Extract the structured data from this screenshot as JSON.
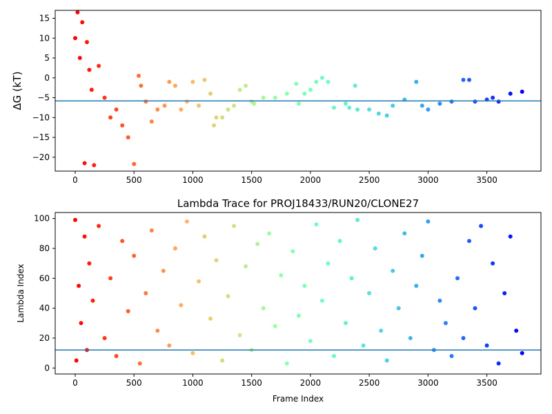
{
  "figure": {
    "background": "#ffffff"
  },
  "chart_data": [
    {
      "type": "scatter",
      "title": "",
      "xlabel": "",
      "ylabel": "ΔG (kT)",
      "xlim": [
        -170,
        3960
      ],
      "ylim": [
        -23.5,
        17
      ],
      "xticks": [
        "0",
        "500",
        "1000",
        "1500",
        "2000",
        "2500",
        "3000",
        "3500"
      ],
      "yticks": [
        "15",
        "10",
        "5",
        "0",
        "−5",
        "−10",
        "−15",
        "−20"
      ],
      "colormap": "rainbow (red at frame 0 to violet at frame 3800)",
      "hline": {
        "y": -5.8,
        "color": "#1f77b4"
      },
      "series": [
        {
          "x": [
            0,
            20,
            40,
            60,
            80,
            100,
            120,
            140,
            160,
            200,
            250,
            300,
            350,
            400,
            450,
            500,
            540,
            560,
            600,
            650,
            700,
            760,
            800,
            850,
            900,
            950,
            1000,
            1050,
            1100,
            1150,
            1180,
            1200,
            1250,
            1300,
            1350,
            1400,
            1450,
            1500,
            1520,
            1600,
            1700,
            1800,
            1880,
            1900,
            1950,
            2000,
            2050,
            2100,
            2150,
            2200,
            2300,
            2330,
            2380,
            2400,
            2500,
            2580,
            2650,
            2700,
            2800,
            2900,
            2950,
            3000,
            3100,
            3200,
            3300,
            3350,
            3400,
            3500,
            3550,
            3600,
            3700,
            3800
          ],
          "y": [
            10,
            16.5,
            5,
            14,
            -21.5,
            9,
            2,
            -3,
            -22,
            3,
            -5,
            -10,
            -8,
            -12,
            -15,
            -21.7,
            0.5,
            -2,
            -6,
            -11,
            -8,
            -7,
            -1,
            -2,
            -8,
            -6,
            -1,
            -7,
            -0.5,
            -4,
            -12,
            -10,
            -10,
            -8,
            -7,
            -3,
            -2,
            -6,
            -6.5,
            -5,
            -5,
            -4,
            -1.5,
            -6.5,
            -4,
            -3,
            -1,
            0,
            -1,
            -7.5,
            -6.5,
            -7.5,
            -2,
            -8,
            -8,
            -9,
            -9.5,
            -7,
            -5.5,
            -1,
            -7,
            -8,
            -6.5,
            -6,
            -0.5,
            -0.5,
            -6,
            -5.5,
            -5,
            -6,
            -4,
            -3.5
          ]
        }
      ]
    },
    {
      "type": "scatter",
      "title": "Lambda Trace for PROJ18433/RUN20/CLONE27",
      "xlabel": "Frame Index",
      "ylabel": "Lambda Index",
      "xlim": [
        -170,
        3960
      ],
      "ylim": [
        -4,
        104
      ],
      "xticks": [
        "0",
        "500",
        "1000",
        "1500",
        "2000",
        "2500",
        "3000",
        "3500"
      ],
      "yticks": [
        "0",
        "20",
        "40",
        "60",
        "80",
        "100"
      ],
      "colormap": "rainbow (red at frame 0 to violet at frame 3800)",
      "hline": {
        "y": 12,
        "color": "#1f77b4"
      },
      "series": [
        {
          "x": [
            0,
            10,
            30,
            50,
            80,
            100,
            120,
            150,
            200,
            250,
            300,
            350,
            400,
            450,
            500,
            550,
            600,
            650,
            700,
            750,
            800,
            850,
            900,
            950,
            1000,
            1050,
            1100,
            1150,
            1200,
            1250,
            1300,
            1350,
            1400,
            1450,
            1500,
            1550,
            1600,
            1650,
            1700,
            1750,
            1800,
            1850,
            1900,
            1950,
            2000,
            2050,
            2100,
            2150,
            2200,
            2250,
            2300,
            2350,
            2400,
            2450,
            2500,
            2550,
            2600,
            2650,
            2700,
            2750,
            2800,
            2850,
            2900,
            2950,
            3000,
            3050,
            3100,
            3150,
            3200,
            3250,
            3300,
            3350,
            3400,
            3450,
            3500,
            3550,
            3600,
            3650,
            3700,
            3750,
            3800
          ],
          "y": [
            99,
            5,
            55,
            30,
            88,
            12,
            70,
            45,
            95,
            20,
            60,
            8,
            85,
            38,
            75,
            3,
            50,
            92,
            25,
            65,
            15,
            80,
            42,
            98,
            10,
            58,
            88,
            33,
            72,
            5,
            48,
            95,
            22,
            68,
            12,
            83,
            40,
            90,
            28,
            62,
            3,
            78,
            35,
            55,
            18,
            96,
            45,
            70,
            8,
            85,
            30,
            60,
            99,
            15,
            50,
            80,
            25,
            5,
            65,
            40,
            90,
            20,
            55,
            75,
            98,
            12,
            45,
            30,
            8,
            60,
            20,
            85,
            40,
            95,
            15,
            70,
            3,
            50,
            88,
            25,
            10
          ]
        }
      ]
    }
  ]
}
